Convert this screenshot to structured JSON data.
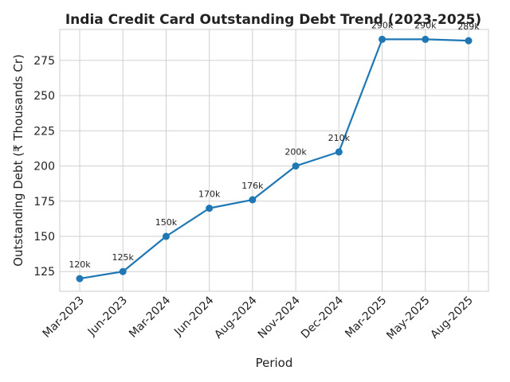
{
  "chart_data": {
    "type": "line",
    "title": "India Credit Card Outstanding Debt Trend (2023-2025)",
    "xlabel": "Period",
    "ylabel": "Outstanding Debt (₹ Thousands Cr)",
    "categories": [
      "Mar-2023",
      "Jun-2023",
      "Mar-2024",
      "Jun-2024",
      "Aug-2024",
      "Nov-2024",
      "Dec-2024",
      "Mar-2025",
      "May-2025",
      "Aug-2025"
    ],
    "series": [
      {
        "values": [
          120,
          125,
          150,
          170,
          176,
          200,
          210,
          290,
          290,
          289
        ],
        "data_labels": [
          "120k",
          "125k",
          "150k",
          "170k",
          "176k",
          "200k",
          "210k",
          "290k",
          "290k",
          "289k"
        ],
        "color": "#1f77b4"
      }
    ],
    "ylim": [
      111,
      297
    ],
    "yticks": [
      125,
      150,
      175,
      200,
      225,
      250,
      275
    ],
    "grid": true,
    "legend": "none"
  }
}
